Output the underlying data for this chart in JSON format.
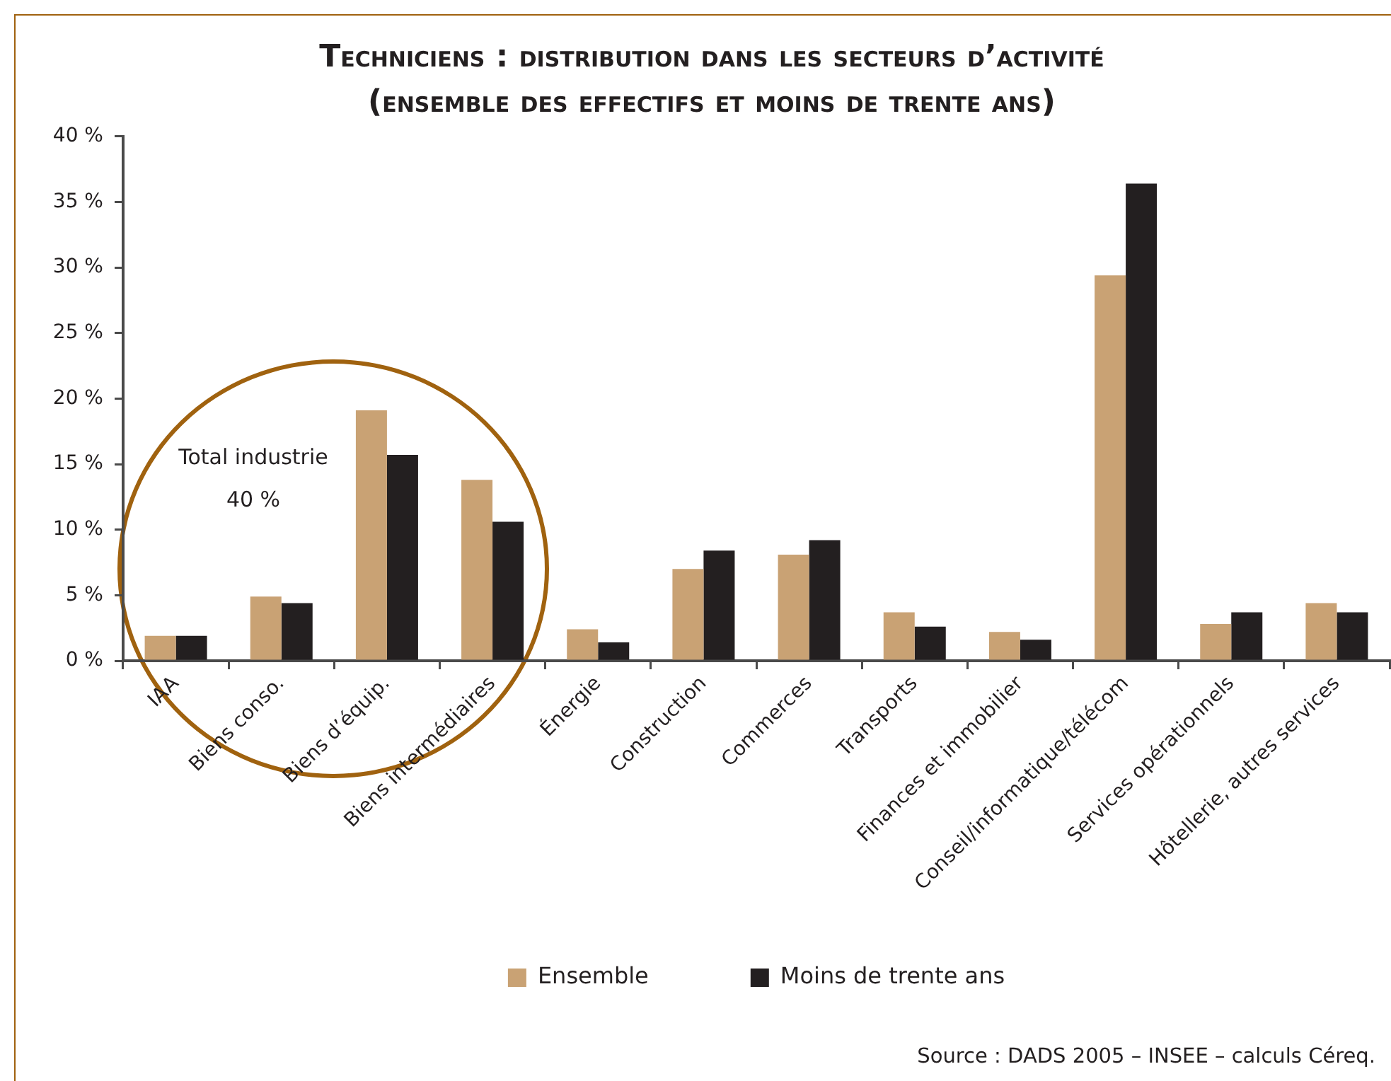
{
  "chart_data": {
    "type": "bar",
    "title": "Techniciens : distribution dans les secteurs d’activité",
    "subtitle": "(ensemble des effectifs et moins de trente ans)",
    "categories": [
      "IAA",
      "Biens conso.",
      "Biens d’équip.",
      "Biens intermédiaires",
      "Énergie",
      "Construction",
      "Commerces",
      "Transports",
      "Finances et immobilier",
      "Conseil/informatique/télécom",
      "Services opérationnels",
      "Hôtellerie, autres services"
    ],
    "series": [
      {
        "name": "Ensemble",
        "color": "#c9a274",
        "values": [
          1.9,
          4.9,
          19.1,
          13.8,
          2.4,
          7.0,
          8.1,
          3.7,
          2.2,
          29.4,
          2.8,
          4.4
        ]
      },
      {
        "name": "Moins de trente ans",
        "color": "#231f20",
        "values": [
          1.9,
          4.4,
          15.7,
          10.6,
          1.4,
          8.4,
          9.2,
          2.6,
          1.6,
          36.4,
          3.7,
          3.7
        ]
      }
    ],
    "ylim": [
      0,
      40
    ],
    "yticks": [
      {
        "value": 0,
        "label": "0 %"
      },
      {
        "value": 5,
        "label": "5 %"
      },
      {
        "value": 10,
        "label": "10 %"
      },
      {
        "value": 15,
        "label": "15 %"
      },
      {
        "value": 20,
        "label": "20 %"
      },
      {
        "value": 25,
        "label": "25 %"
      },
      {
        "value": 30,
        "label": "30 %"
      },
      {
        "value": 35,
        "label": "35 %"
      },
      {
        "value": 40,
        "label": "40 %"
      }
    ],
    "legend": "bottom",
    "annotations": [
      "Total industrie 40 %",
      "Source : DADS 2005 – INSEE – calculs Céreq."
    ]
  }
}
